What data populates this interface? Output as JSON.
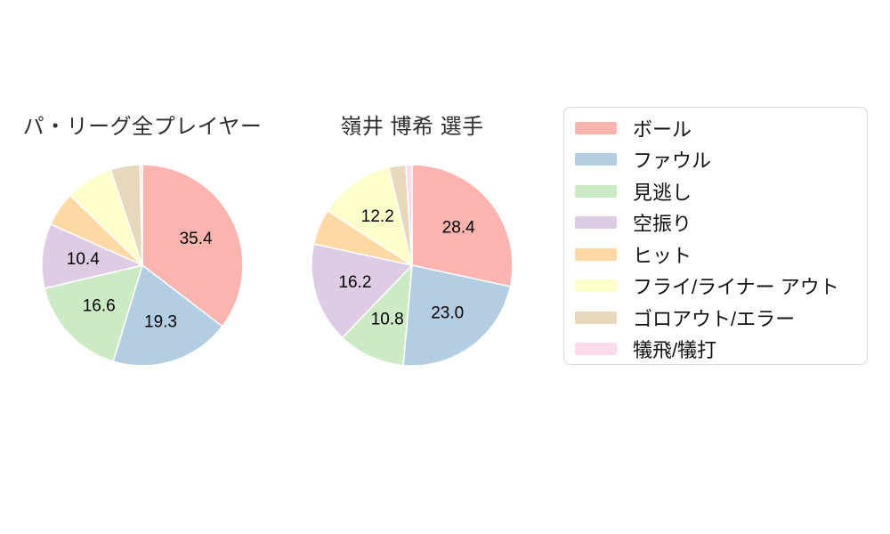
{
  "page": {
    "background": "#ffffff"
  },
  "chart_data": [
    {
      "type": "pie",
      "title": "パ・リーグ全プレイヤー",
      "unit": "percent",
      "start_angle": "12-oclock",
      "direction": "clockwise",
      "value_label_threshold": 10,
      "slices": [
        {
          "category": "ボール",
          "value": 35.4,
          "display": "35.4",
          "estimated": false
        },
        {
          "category": "ファウル",
          "value": 19.3,
          "display": "19.3",
          "estimated": false
        },
        {
          "category": "見逃し",
          "value": 16.6,
          "display": "16.6",
          "estimated": false
        },
        {
          "category": "空振り",
          "value": 10.4,
          "display": "10.4",
          "estimated": false
        },
        {
          "category": "ヒット",
          "value": 5.5,
          "display": "",
          "estimated": true
        },
        {
          "category": "フライ/ライナー アウト",
          "value": 7.7,
          "display": "",
          "estimated": true
        },
        {
          "category": "ゴロアウト/エラー",
          "value": 4.7,
          "display": "",
          "estimated": true
        },
        {
          "category": "犠飛/犠打",
          "value": 0.4,
          "display": "",
          "estimated": true
        }
      ]
    },
    {
      "type": "pie",
      "title": "嶺井 博希 選手",
      "unit": "percent",
      "start_angle": "12-oclock",
      "direction": "clockwise",
      "value_label_threshold": 10,
      "slices": [
        {
          "category": "ボール",
          "value": 28.4,
          "display": "28.4",
          "estimated": false
        },
        {
          "category": "ファウル",
          "value": 23.0,
          "display": "23.0",
          "estimated": false
        },
        {
          "category": "見逃し",
          "value": 10.8,
          "display": "10.8",
          "estimated": false
        },
        {
          "category": "空振り",
          "value": 16.2,
          "display": "16.2",
          "estimated": false
        },
        {
          "category": "ヒット",
          "value": 5.7,
          "display": "",
          "estimated": true
        },
        {
          "category": "フライ/ライナー アウト",
          "value": 12.2,
          "display": "12.2",
          "estimated": false
        },
        {
          "category": "ゴロアウト/エラー",
          "value": 2.7,
          "display": "",
          "estimated": true
        },
        {
          "category": "犠飛/犠打",
          "value": 1.0,
          "display": "",
          "estimated": true
        }
      ]
    }
  ],
  "legend": {
    "position": "right",
    "items": [
      {
        "key": "ball",
        "label": "ボール",
        "color": "#fbb4ae"
      },
      {
        "key": "foul",
        "label": "ファウル",
        "color": "#b3cde3"
      },
      {
        "key": "called-strike",
        "label": "見逃し",
        "color": "#ccebc5"
      },
      {
        "key": "swinging-strike",
        "label": "空振り",
        "color": "#decbe4"
      },
      {
        "key": "hit",
        "label": "ヒット",
        "color": "#fed9a6"
      },
      {
        "key": "fly-liner-out",
        "label": "フライ/ライナー アウト",
        "color": "#ffffcc"
      },
      {
        "key": "ground-out-error",
        "label": "ゴロアウト/エラー",
        "color": "#e5d8bd"
      },
      {
        "key": "sacrifice",
        "label": "犠飛/犠打",
        "color": "#fddaec"
      }
    ]
  },
  "style": {
    "slice_border_color": "#ffffff",
    "pie_label_color": "#000000",
    "title_color": "#2f2f2f",
    "legend_border_color": "#d9d9d9",
    "legend_background": "#ffffff",
    "legend_text_color": "#111111"
  }
}
